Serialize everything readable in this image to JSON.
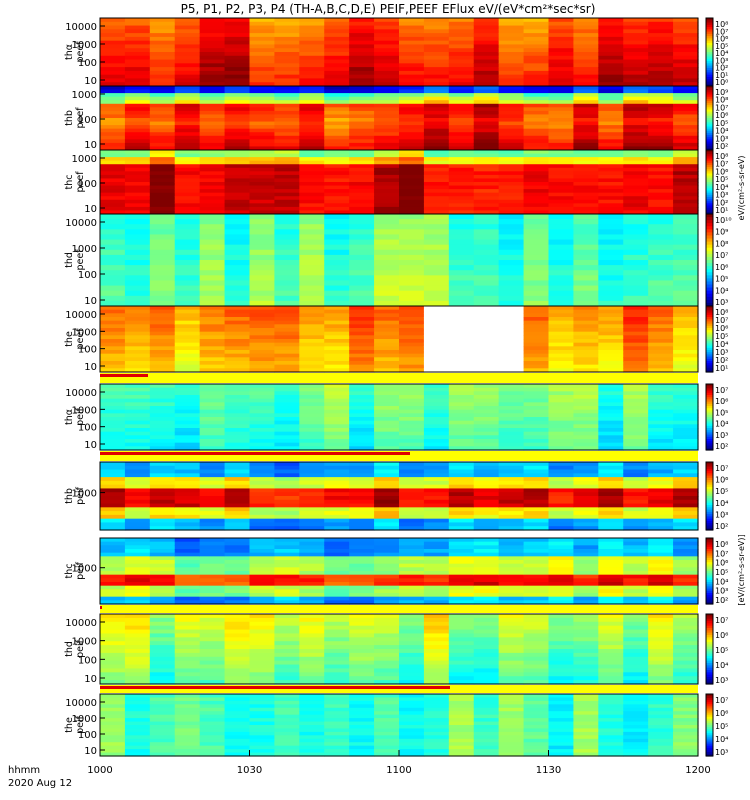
{
  "title": "P5, P1, P2, P3, P4 (TH-A,B,C,D,E) PEIF,PEEF EFlux eV/(eV*cm²*sec*sr)",
  "time_label": "hhmm",
  "date_label": "2020 Aug 12",
  "cb_label_electron": "eV/(cm²-s-sr-eV)",
  "cb_label_ion": "[eV/(cm²-s-sr-eV)]",
  "chart_data": {
    "type": "heatmap",
    "x_ticks": [
      "1000",
      "1030",
      "1100",
      "1130",
      "1200"
    ],
    "x_range": [
      1000,
      1200
    ],
    "panels": [
      {
        "probe": "tha",
        "name": "thα",
        "label": "peef",
        "ticks": [
          "10",
          "100",
          "1000",
          "10000"
        ],
        "cb": [
          1,
          10,
          100,
          1000,
          10000,
          100000,
          1000000,
          10000000,
          100000000
        ],
        "cb_labels": [
          "10⁸",
          "10⁷",
          "10⁶",
          "10⁵",
          "10⁴",
          "10³",
          "10²",
          "10¹",
          "10⁰"
        ],
        "colors": [
          "#ffeb00",
          "#ff5a00",
          "#ff9e00",
          "#ff7b00",
          "#ffd200",
          "#ff4000",
          "#ff9000",
          "#ffd400",
          "#ff3000",
          "#ff5000",
          "#f7ff00",
          "#ff3f00",
          "#ff7100",
          "#ffbd00",
          "#ff8300",
          "#ffc000"
        ],
        "strip": false
      },
      {
        "probe": "thb",
        "name": "thb",
        "label": "peef",
        "ticks": [
          "10",
          "100",
          "1000"
        ],
        "cb": [],
        "cb_labels": [
          "10⁹",
          "10⁸",
          "10⁷",
          "10⁶",
          "10⁵",
          "10⁴",
          "10³",
          "10²"
        ],
        "colors": [],
        "strip": false
      },
      {
        "probe": "thc",
        "name": "thc",
        "label": "peef",
        "ticks": [
          "10",
          "100",
          "1000"
        ],
        "cb": [],
        "cb_labels": [
          "10⁸",
          "10⁷",
          "10⁶",
          "10⁵",
          "10⁴",
          "10³",
          "10²",
          "10¹"
        ],
        "colors": [],
        "strip": false
      },
      {
        "probe": "thd",
        "name": "thd",
        "label": "peef",
        "ticks": [
          "10",
          "100",
          "1000",
          "10000"
        ],
        "cb": [],
        "cb_labels": [
          "10¹⁰",
          "10⁹",
          "10⁸",
          "10⁷",
          "10⁶",
          "10⁵",
          "10⁴",
          "10³"
        ],
        "colors": [],
        "strip": false
      },
      {
        "probe": "the",
        "name": "the",
        "label": "peef",
        "ticks": [
          "10",
          "100",
          "1000",
          "10000"
        ],
        "cb": [],
        "cb_labels": [
          "10⁸",
          "10⁷",
          "10⁶",
          "10⁵",
          "10⁴",
          "10³",
          "10²",
          "10¹"
        ],
        "colors": [],
        "strip": true
      },
      {
        "probe": "tha",
        "name": "thα",
        "label": "peif",
        "ticks": [
          "10",
          "100",
          "1000",
          "10000"
        ],
        "cb": [],
        "cb_labels": [
          "10⁷",
          "10⁶",
          "10⁵",
          "10⁴",
          "10³",
          "10²"
        ],
        "colors": [],
        "strip": true
      },
      {
        "probe": "thb",
        "name": "thb",
        "label": "peif",
        "ticks": [
          "1000"
        ],
        "cb": [],
        "cb_labels": [
          "10⁷",
          "10⁶",
          "10⁵",
          "10⁴",
          "10³",
          "10²"
        ],
        "colors": [],
        "strip": false
      },
      {
        "probe": "thc",
        "name": "thc",
        "label": "peif",
        "ticks": [
          "1000"
        ],
        "cb": [],
        "cb_labels": [
          "10⁸",
          "10⁷",
          "10⁶",
          "10⁵",
          "10⁴",
          "10³",
          "10²"
        ],
        "colors": [],
        "strip": true
      },
      {
        "probe": "thd",
        "name": "thd",
        "label": "peif",
        "ticks": [
          "10",
          "100",
          "1000",
          "10000"
        ],
        "cb": [],
        "cb_labels": [
          "10⁷",
          "10⁶",
          "10⁵",
          "10⁴",
          "10³"
        ],
        "colors": [],
        "strip": true
      },
      {
        "probe": "the",
        "name": "the",
        "label": "peif",
        "ticks": [
          "10",
          "100",
          "1000",
          "10000"
        ],
        "cb": [],
        "cb_labels": [
          "10⁷",
          "10⁶",
          "10⁵",
          "10⁴",
          "10³"
        ],
        "colors": [],
        "strip": false
      }
    ]
  }
}
